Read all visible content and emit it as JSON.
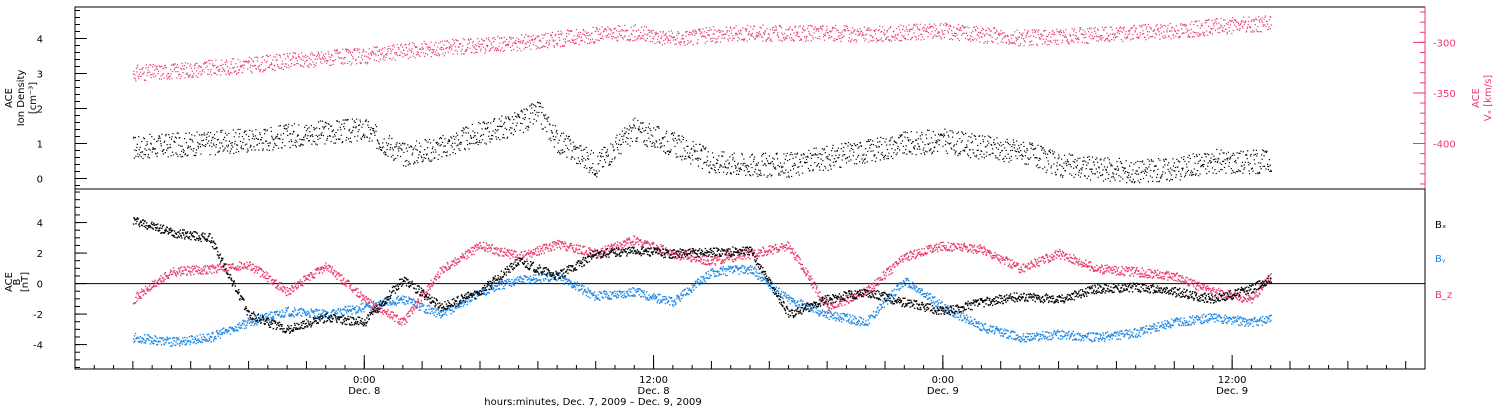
{
  "colors": {
    "black": "#000000",
    "red": "#e83b6a",
    "blue": "#1e88e5",
    "axis": "#000000",
    "right_axis": "#e83b6a"
  },
  "xaxis": {
    "title": "hours:minutes, Dec.  7, 2009 – Dec.  9, 2009",
    "range_hours": [
      -15,
      55
    ],
    "ticks": [
      {
        "hours": 0,
        "time": "0:00",
        "date": "Dec. 8"
      },
      {
        "hours": 15,
        "time": "12:00",
        "date": "Dec. 8"
      },
      {
        "hours": 30,
        "time": "0:00",
        "date": "Dec. 9"
      },
      {
        "hours": 45,
        "time": "12:00",
        "date": "Dec. 9"
      }
    ]
  },
  "chart_data": [
    {
      "type": "scatter",
      "panel": "top",
      "ylabel_lines": [
        "ACE",
        "Ion Density",
        "[cm⁻³]"
      ],
      "ylim": [
        -0.3,
        4.9
      ],
      "yticks": [
        0,
        1,
        2,
        3,
        4
      ],
      "ytick_labels": [
        "0",
        "1",
        "2",
        "3",
        "4"
      ],
      "right_axis": {
        "label_main": "ACE",
        "label_sub": "Vₓ [km/s]",
        "ylim": [
          -445,
          -265
        ],
        "yticks": [
          -400,
          -350,
          -300
        ],
        "ytick_labels": [
          "-400",
          "-350",
          "-300"
        ]
      },
      "series": [
        {
          "color": "black",
          "x_hours": [
            -12,
            -9,
            -6,
            -3,
            0,
            2,
            4,
            6,
            8,
            9,
            10,
            12,
            14,
            16,
            18,
            20,
            22,
            24,
            26,
            28,
            30,
            32,
            34,
            36,
            38,
            40,
            42,
            44,
            46,
            47
          ],
          "y": [
            0.9,
            1.0,
            1.1,
            1.3,
            1.4,
            0.7,
            0.9,
            1.3,
            1.6,
            1.9,
            1.1,
            0.4,
            1.4,
            1.0,
            0.5,
            0.4,
            0.4,
            0.6,
            0.8,
            1.0,
            1.1,
            0.9,
            0.8,
            0.4,
            0.3,
            0.2,
            0.3,
            0.5,
            0.5,
            0.5
          ]
        },
        {
          "color": "red",
          "axis": "right",
          "x_hours": [
            -12,
            -10,
            -8,
            -6,
            -4,
            -2,
            0,
            2,
            4,
            6,
            8,
            10,
            12,
            14,
            16,
            18,
            20,
            22,
            24,
            26,
            28,
            30,
            32,
            34,
            36,
            38,
            40,
            42,
            44,
            46,
            47
          ],
          "y": [
            -330,
            -328,
            -325,
            -322,
            -318,
            -315,
            -313,
            -308,
            -305,
            -302,
            -300,
            -296,
            -292,
            -290,
            -296,
            -292,
            -290,
            -291,
            -290,
            -292,
            -290,
            -288,
            -292,
            -295,
            -294,
            -292,
            -290,
            -288,
            -284,
            -282,
            -280
          ]
        }
      ]
    },
    {
      "type": "scatter",
      "panel": "bottom",
      "ylabel_lines": [
        "ACE",
        "B",
        "[nT]"
      ],
      "ylim": [
        -5.6,
        6.2
      ],
      "yticks": [
        -4,
        -2,
        0,
        2,
        4
      ],
      "ytick_labels": [
        "-4",
        "-2",
        "0",
        "2",
        "4"
      ],
      "zero_line": true,
      "legend_position": "right",
      "series": [
        {
          "name": "Bₓ",
          "color": "black",
          "x_hours": [
            -12,
            -10,
            -8,
            -6,
            -4,
            -2,
            0,
            2,
            4,
            6,
            8,
            10,
            12,
            14,
            16,
            18,
            20,
            22,
            24,
            26,
            28,
            30,
            32,
            34,
            36,
            38,
            40,
            42,
            44,
            46,
            47
          ],
          "y": [
            4.2,
            3.4,
            3.0,
            -2.0,
            -3.0,
            -2.2,
            -2.5,
            0.3,
            -1.5,
            -0.5,
            1.5,
            0.5,
            2.0,
            2.2,
            2.0,
            2.1,
            2.2,
            -2.0,
            -1.0,
            -0.5,
            -1.2,
            -1.8,
            -1.2,
            -0.8,
            -1.0,
            -0.3,
            -0.2,
            -0.5,
            -1.0,
            -0.3,
            0.4
          ]
        },
        {
          "name": "Bᵧ",
          "color": "blue",
          "x_hours": [
            -12,
            -10,
            -8,
            -6,
            -4,
            -2,
            0,
            2,
            4,
            6,
            8,
            10,
            12,
            14,
            16,
            18,
            20,
            22,
            24,
            26,
            28,
            30,
            32,
            34,
            36,
            38,
            40,
            42,
            44,
            46,
            47
          ],
          "y": [
            -3.5,
            -3.8,
            -3.5,
            -2.5,
            -1.8,
            -2.0,
            -1.5,
            -1.0,
            -2.0,
            -0.5,
            0.3,
            0.5,
            -0.8,
            -0.5,
            -1.2,
            0.8,
            1.0,
            -1.0,
            -2.0,
            -2.5,
            0.2,
            -1.5,
            -2.8,
            -3.5,
            -3.3,
            -3.5,
            -3.2,
            -2.5,
            -2.2,
            -2.5,
            -2.3
          ]
        },
        {
          "name": "B_z",
          "color": "red",
          "x_hours": [
            -12,
            -10,
            -8,
            -6,
            -4,
            -2,
            0,
            2,
            4,
            6,
            8,
            10,
            12,
            14,
            16,
            18,
            20,
            22,
            24,
            26,
            28,
            30,
            32,
            34,
            36,
            38,
            40,
            42,
            44,
            46,
            47
          ],
          "y": [
            -1.0,
            0.8,
            1.0,
            1.3,
            -0.5,
            1.2,
            -1.0,
            -2.5,
            1.0,
            2.5,
            1.8,
            2.6,
            2.0,
            2.9,
            2.0,
            1.5,
            2.0,
            2.5,
            -1.5,
            -0.5,
            1.8,
            2.5,
            2.3,
            1.0,
            2.0,
            1.0,
            0.8,
            0.5,
            -0.5,
            -1.0,
            0.5
          ]
        }
      ]
    }
  ]
}
